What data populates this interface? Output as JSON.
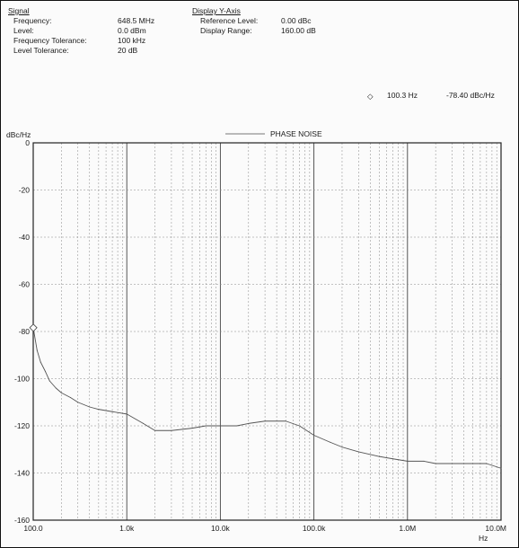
{
  "signal": {
    "heading": "Signal",
    "rows": [
      {
        "label": "Frequency:",
        "value": "648.5 MHz"
      },
      {
        "label": "Level:",
        "value": "0.0 dBm"
      },
      {
        "label": "Frequency Tolerance:",
        "value": "100 kHz"
      },
      {
        "label": "Level Tolerance:",
        "value": "20 dB"
      }
    ]
  },
  "display_y_axis": {
    "heading": "Display Y-Axis",
    "rows": [
      {
        "label": "Reference Level:",
        "value": "0.00 dBc"
      },
      {
        "label": "Display Range:",
        "value": "160.00 dB"
      }
    ]
  },
  "marker": {
    "freq": "100.3 Hz",
    "level": "-78.40 dBc/Hz"
  },
  "chart_data": {
    "type": "line",
    "title": "",
    "ylabel": "dBc/Hz",
    "xlabel": "Hz",
    "x_scale": "log",
    "xlim": [
      100,
      10000000
    ],
    "ylim": [
      -160,
      0
    ],
    "grid": true,
    "legend": "top-center",
    "series": [
      {
        "name": "PHASE NOISE",
        "color": "#555555",
        "x": [
          100,
          110,
          120,
          135,
          150,
          175,
          200,
          250,
          300,
          400,
          500,
          700,
          1000,
          1500,
          2000,
          3000,
          5000,
          7000,
          10000,
          15000,
          20000,
          30000,
          50000,
          70000,
          100000,
          150000,
          200000,
          300000,
          500000,
          700000,
          1000000,
          1500000,
          2000000,
          3000000,
          5000000,
          7000000,
          10000000
        ],
        "values": [
          -78.4,
          -88,
          -93,
          -97,
          -101,
          -104,
          -106,
          -108,
          -110,
          -112,
          -113,
          -114,
          -115,
          -119,
          -122,
          -122,
          -121,
          -120,
          -120,
          -120,
          -119,
          -118,
          -118,
          -120,
          -124,
          -127,
          -129,
          -131,
          -133,
          -134,
          -135,
          -135,
          -136,
          -136,
          -136,
          -136,
          -138
        ]
      }
    ],
    "marker": {
      "x": 100.3,
      "y": -78.4
    },
    "x_tick_labels": [
      "100.0",
      "1.0k",
      "10.0k",
      "100.0k",
      "1.0M",
      "10.0M"
    ],
    "y_tick_labels": [
      "0",
      "-20",
      "-40",
      "-60",
      "-80",
      "-100",
      "-120",
      "-140",
      "-160"
    ]
  }
}
